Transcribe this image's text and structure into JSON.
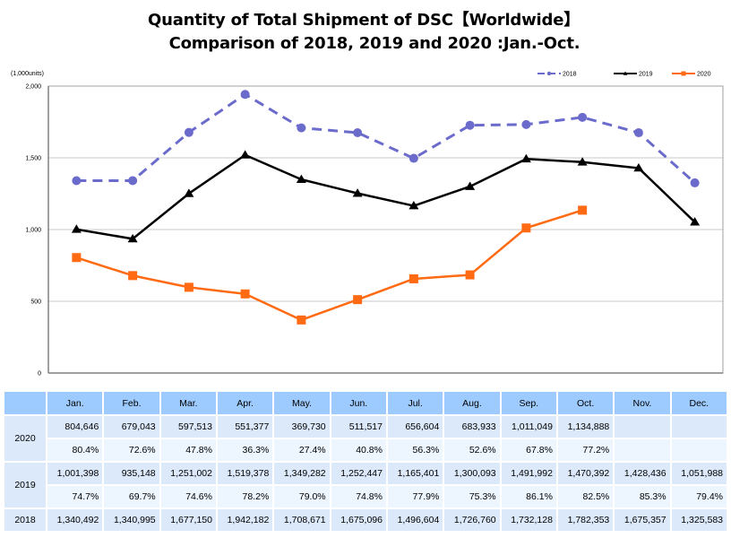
{
  "title": {
    "line1": "Quantity of Total Shipment of DSC【Worldwide】",
    "line2": "Comparison of 2018, 2019 and 2020 :Jan.-Oct."
  },
  "chart_data": {
    "type": "line",
    "title": "Quantity of Total Shipment of DSC【Worldwide】 Comparison of 2018, 2019 and 2020 :Jan.-Oct.",
    "xlabel": "",
    "ylabel": "(1,000units)",
    "ylim": [
      0,
      2000
    ],
    "yticks": [
      0,
      500,
      1000,
      1500,
      2000
    ],
    "ytick_labels": [
      "0",
      "500",
      "1,000",
      "1,500",
      "2,000"
    ],
    "grid": true,
    "legend_position": "top-right",
    "categories": [
      "Jan.",
      "Feb.",
      "Mar.",
      "Apr.",
      "May.",
      "Jun.",
      "Jul.",
      "Aug.",
      "Sep.",
      "Oct.",
      "Nov.",
      "Dec."
    ],
    "series": [
      {
        "name": "2018",
        "color": "#6b6bcc",
        "line_style": "dashed",
        "marker": "circle",
        "values": [
          1340.492,
          1340.995,
          1677.15,
          1942.182,
          1708.671,
          1675.096,
          1496.604,
          1726.76,
          1732.128,
          1782.353,
          1675.357,
          1325.583
        ]
      },
      {
        "name": "2019",
        "color": "#000000",
        "line_style": "solid",
        "marker": "triangle",
        "values": [
          1001.398,
          935.148,
          1251.002,
          1519.378,
          1349.282,
          1252.447,
          1165.401,
          1300.093,
          1491.992,
          1470.392,
          1428.436,
          1051.988
        ]
      },
      {
        "name": "2020",
        "color": "#ff6a13",
        "line_style": "solid",
        "marker": "square",
        "values": [
          804.646,
          679.043,
          597.513,
          551.377,
          369.73,
          511.517,
          656.604,
          683.933,
          1011.049,
          1134.888,
          null,
          null
        ]
      }
    ]
  },
  "table": {
    "headers": [
      "",
      "Jan.",
      "Feb.",
      "Mar.",
      "Apr.",
      "May.",
      "Jun.",
      "Jul.",
      "Aug.",
      "Sep.",
      "Oct.",
      "Nov.",
      "Dec."
    ],
    "rows": [
      {
        "year": "2020",
        "values": [
          "804,646",
          "679,043",
          "597,513",
          "551,377",
          "369,730",
          "511,517",
          "656,604",
          "683,933",
          "1,011,049",
          "1,134,888",
          "",
          ""
        ],
        "percents": [
          "80.4%",
          "72.6%",
          "47.8%",
          "36.3%",
          "27.4%",
          "40.8%",
          "56.3%",
          "52.6%",
          "67.8%",
          "77.2%",
          "",
          ""
        ]
      },
      {
        "year": "2019",
        "values": [
          "1,001,398",
          "935,148",
          "1,251,002",
          "1,519,378",
          "1,349,282",
          "1,252,447",
          "1,165,401",
          "1,300,093",
          "1,491,992",
          "1,470,392",
          "1,428,436",
          "1,051,988"
        ],
        "percents": [
          "74.7%",
          "69.7%",
          "74.6%",
          "78.2%",
          "79.0%",
          "74.8%",
          "77.9%",
          "75.3%",
          "86.1%",
          "82.5%",
          "85.3%",
          "79.4%"
        ]
      },
      {
        "year": "2018",
        "values": [
          "1,340,492",
          "1,340,995",
          "1,677,150",
          "1,942,182",
          "1,708,671",
          "1,675,096",
          "1,496,604",
          "1,726,760",
          "1,732,128",
          "1,782,353",
          "1,675,357",
          "1,325,583"
        ]
      }
    ]
  }
}
